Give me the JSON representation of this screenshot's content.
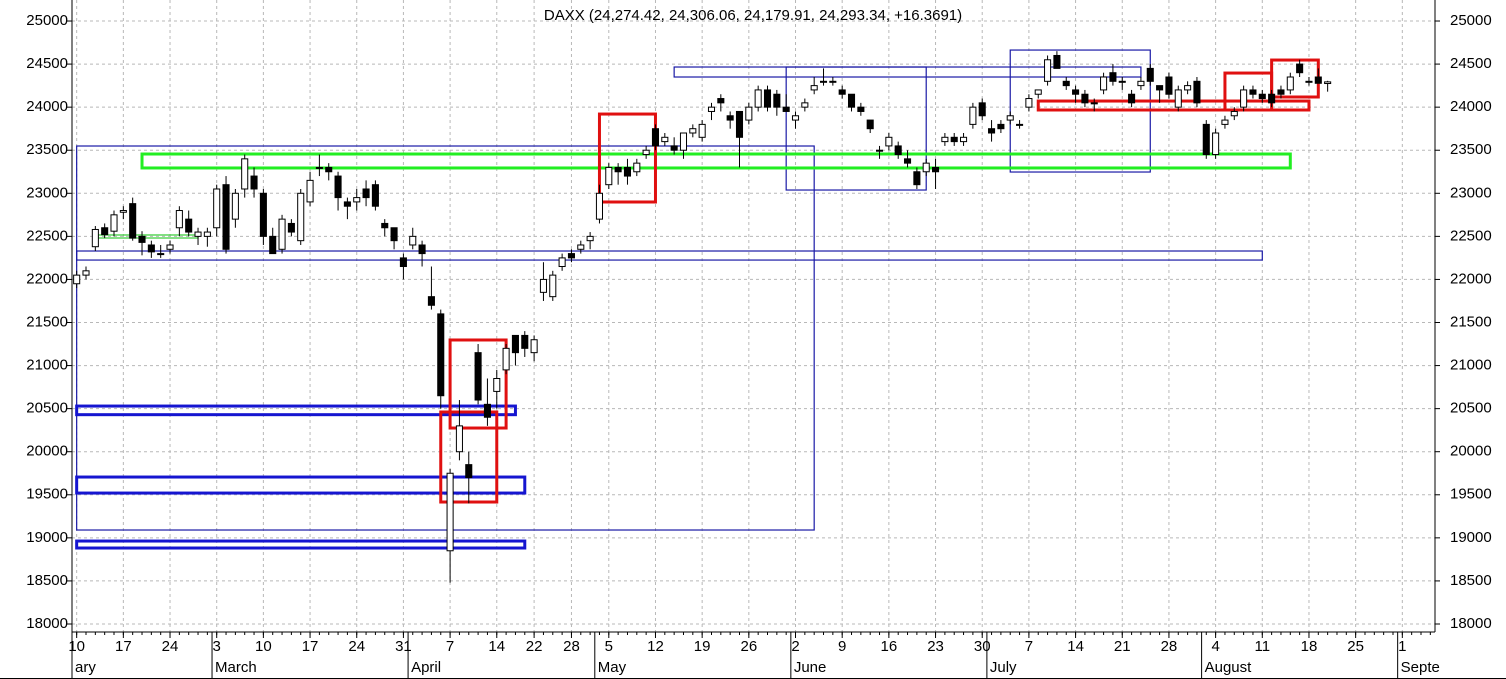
{
  "chart_data": {
    "type": "candlestick",
    "title": "DAXX (24,274.42, 24,306.06, 24,179.91, 24,293.34, +16.3691)",
    "categories": [
      "02-10",
      "02-11",
      "02-12",
      "02-13",
      "02-14",
      "02-17",
      "02-18",
      "02-19",
      "02-20",
      "02-21",
      "02-24",
      "02-25",
      "02-26",
      "02-27",
      "02-28",
      "03-03",
      "03-04",
      "03-05",
      "03-06",
      "03-07",
      "03-10",
      "03-11",
      "03-12",
      "03-13",
      "03-14",
      "03-17",
      "03-18",
      "03-19",
      "03-20",
      "03-21",
      "03-24",
      "03-25",
      "03-26",
      "03-27",
      "03-28",
      "03-31",
      "04-01",
      "04-02",
      "04-03",
      "04-04",
      "04-07",
      "04-08",
      "04-09",
      "04-10",
      "04-11",
      "04-14",
      "04-15",
      "04-16",
      "04-17",
      "04-22",
      "04-23",
      "04-24",
      "04-25",
      "04-28",
      "04-29",
      "04-30",
      "05-02",
      "05-05",
      "05-06",
      "05-07",
      "05-08",
      "05-09",
      "05-12",
      "05-13",
      "05-14",
      "05-15",
      "05-16",
      "05-19",
      "05-20",
      "05-21",
      "05-22",
      "05-23",
      "05-26",
      "05-27",
      "05-28",
      "05-29",
      "05-30",
      "06-02",
      "06-03",
      "06-04",
      "06-05",
      "06-06",
      "06-09",
      "06-10",
      "06-11",
      "06-12",
      "06-13",
      "06-16",
      "06-17",
      "06-18",
      "06-19",
      "06-20",
      "06-23",
      "06-24",
      "06-25",
      "06-26",
      "06-27",
      "06-30",
      "07-01",
      "07-02",
      "07-03",
      "07-04",
      "07-07",
      "07-08",
      "07-09",
      "07-10",
      "07-11",
      "07-14",
      "07-15",
      "07-16",
      "07-17",
      "07-18",
      "07-21",
      "07-22",
      "07-23",
      "07-24",
      "07-25",
      "07-28",
      "07-29",
      "07-30",
      "07-31",
      "08-01",
      "08-04",
      "08-05",
      "08-06",
      "08-07",
      "08-08",
      "08-11",
      "08-12",
      "08-13",
      "08-14",
      "08-15",
      "08-18",
      "08-19",
      "08-20",
      "08-21",
      "08-22",
      "08-25",
      "08-26",
      "08-27",
      "08-28",
      "08-29",
      "09-01",
      "09-02",
      "09-03",
      "09-04"
    ],
    "open": [
      21950,
      22050,
      22380,
      22600,
      22560,
      22780,
      22880,
      22500,
      22400,
      22300,
      22350,
      22600,
      22700,
      22500,
      22500,
      22600,
      23100,
      22700,
      23050,
      23200,
      23000,
      22500,
      22350,
      22650,
      22450,
      22900,
      23300,
      23300,
      23200,
      22900,
      22900,
      23050,
      23100,
      22650,
      22600,
      22250,
      22400,
      22400,
      21800,
      21600,
      18850,
      20000,
      19850,
      21150,
      20550,
      20700,
      20950,
      21350,
      21350,
      21150,
      21850,
      21800,
      22150,
      22300,
      22350,
      22450,
      22700,
      23100,
      23300,
      23300,
      23250,
      23450,
      23750,
      23600,
      23550,
      23500,
      23700,
      23650,
      23950,
      24100,
      23900,
      23950,
      23850,
      24000,
      24200,
      24150,
      24000,
      23850,
      24000,
      24200,
      24300,
      24300,
      24200,
      24150,
      24000,
      23850,
      23500,
      23550,
      23550,
      23400,
      23250,
      23250,
      23300,
      23600,
      23650,
      23600,
      23800,
      24050,
      23750,
      23800,
      23850,
      23800,
      24000,
      24150,
      24300,
      24600,
      24300,
      24200,
      24150,
      24050,
      24200,
      24400,
      24300,
      24150,
      24250,
      24450,
      24250,
      24350,
      24000,
      24200,
      24300,
      23800,
      23450,
      23800,
      23900,
      24000,
      24200,
      24150,
      24150,
      24200,
      24200,
      24500,
      24300,
      24350,
      24274.42,
      null,
      null,
      null,
      null,
      null,
      null,
      null,
      null,
      null,
      null,
      null
    ],
    "high": [
      22100,
      22150,
      22620,
      22650,
      22800,
      22850,
      22950,
      22560,
      22450,
      22400,
      22450,
      22850,
      22800,
      22600,
      22600,
      23100,
      23200,
      23050,
      23450,
      23300,
      23050,
      22600,
      22750,
      22700,
      23050,
      23250,
      23450,
      23350,
      23250,
      22950,
      23050,
      23150,
      23150,
      22700,
      22600,
      22300,
      22600,
      22450,
      22150,
      21650,
      19800,
      20600,
      20000,
      21250,
      20850,
      20950,
      21250,
      21350,
      21400,
      21350,
      22200,
      22100,
      22300,
      22350,
      22450,
      22550,
      23100,
      23350,
      23350,
      23400,
      23400,
      23550,
      23800,
      23700,
      23650,
      23700,
      23800,
      23850,
      24050,
      24150,
      23950,
      23950,
      24050,
      24250,
      24250,
      24200,
      24150,
      23950,
      24100,
      24350,
      24450,
      24350,
      24250,
      24150,
      24050,
      23850,
      23550,
      23700,
      23600,
      23500,
      23300,
      23400,
      23400,
      23700,
      23700,
      23700,
      24050,
      24100,
      23850,
      23850,
      23950,
      23850,
      24150,
      24200,
      24600,
      24650,
      24350,
      24250,
      24200,
      24100,
      24400,
      24500,
      24350,
      24200,
      24350,
      24500,
      24250,
      24400,
      24250,
      24300,
      24350,
      23850,
      23750,
      23900,
      24000,
      24250,
      24250,
      24200,
      24200,
      24250,
      24400,
      24550,
      24350,
      24450,
      24306.06,
      null,
      null,
      null,
      null,
      null,
      null,
      null,
      null,
      null,
      null,
      null
    ],
    "low": [
      21900,
      22000,
      22330,
      22480,
      22500,
      22700,
      22450,
      22280,
      22250,
      22250,
      22300,
      22500,
      22500,
      22400,
      22380,
      22500,
      22300,
      22600,
      22950,
      22950,
      22400,
      22300,
      22300,
      22500,
      22400,
      22850,
      23200,
      23150,
      22800,
      22700,
      22800,
      22850,
      22800,
      22500,
      22350,
      22000,
      22350,
      22150,
      21650,
      20500,
      18480,
      19900,
      19400,
      20550,
      20300,
      20500,
      20900,
      21000,
      21100,
      21050,
      21750,
      21750,
      22100,
      22200,
      22300,
      22350,
      22650,
      23050,
      23100,
      23100,
      23200,
      23400,
      23500,
      23550,
      23450,
      23400,
      23650,
      23600,
      23850,
      23950,
      23750,
      23300,
      23800,
      23950,
      23950,
      23900,
      23950,
      23750,
      23950,
      24150,
      24250,
      24250,
      24100,
      23950,
      23900,
      23700,
      23400,
      23500,
      23400,
      23300,
      23050,
      23200,
      23050,
      23550,
      23550,
      23550,
      23750,
      23850,
      23600,
      23700,
      23800,
      23750,
      23950,
      24100,
      24250,
      24450,
      24200,
      24050,
      24000,
      23950,
      24150,
      24250,
      24200,
      24000,
      24200,
      24250,
      24050,
      24100,
      23950,
      24150,
      24000,
      23400,
      23400,
      23750,
      23850,
      23950,
      24100,
      24050,
      24000,
      24100,
      24150,
      24350,
      24250,
      24300,
      24179.91,
      null,
      null,
      null,
      null,
      null,
      null,
      null,
      null,
      null,
      null,
      null
    ],
    "close": [
      22050,
      22100,
      22580,
      22520,
      22750,
      22800,
      22480,
      22430,
      22320,
      22300,
      22400,
      22800,
      22550,
      22550,
      22550,
      23050,
      22350,
      23000,
      23400,
      23050,
      22500,
      22300,
      22700,
      22550,
      23000,
      23150,
      23300,
      23250,
      22950,
      22850,
      22950,
      22950,
      22850,
      22600,
      22450,
      22150,
      22500,
      22300,
      21700,
      20650,
      19750,
      20300,
      19700,
      20600,
      20400,
      20850,
      21200,
      21150,
      21200,
      21300,
      22000,
      22050,
      22250,
      22250,
      22400,
      22500,
      23000,
      23300,
      23250,
      23200,
      23350,
      23500,
      23550,
      23650,
      23500,
      23700,
      23750,
      23800,
      24000,
      24050,
      23850,
      23650,
      24000,
      24200,
      24000,
      24000,
      23950,
      23900,
      24050,
      24250,
      24300,
      24300,
      24150,
      24000,
      23950,
      23750,
      23500,
      23650,
      23450,
      23350,
      23100,
      23350,
      23250,
      23650,
      23600,
      23650,
      24000,
      23900,
      23700,
      23750,
      23900,
      23800,
      24100,
      24200,
      24550,
      24450,
      24250,
      24150,
      24050,
      24050,
      24350,
      24300,
      24300,
      24050,
      24300,
      24300,
      24200,
      24150,
      24200,
      24250,
      24050,
      23450,
      23700,
      23850,
      23950,
      24200,
      24150,
      24100,
      24050,
      24150,
      24350,
      24400,
      24300,
      24277,
      24293.34,
      null,
      null,
      null,
      null,
      null,
      null,
      null,
      null,
      null,
      null,
      null
    ],
    "up_color": "#ffffff",
    "down_color": "#000000",
    "ylim": [
      17907,
      25244
    ],
    "yticks": [
      18000,
      18500,
      19000,
      19500,
      20000,
      20500,
      21000,
      21500,
      22000,
      22500,
      23000,
      23500,
      24000,
      24500,
      25000
    ],
    "xticks": [
      {
        "value": "02-10",
        "label": "10"
      },
      {
        "value": "02-17",
        "label": "17"
      },
      {
        "value": "02-24",
        "label": "24"
      },
      {
        "value": "03-03",
        "label": "3"
      },
      {
        "value": "03-10",
        "label": "10"
      },
      {
        "value": "03-17",
        "label": "17"
      },
      {
        "value": "03-24",
        "label": "24"
      },
      {
        "value": "03-31",
        "label": "31"
      },
      {
        "value": "04-07",
        "label": "7"
      },
      {
        "value": "04-14",
        "label": "14"
      },
      {
        "value": "04-22",
        "label": "22"
      },
      {
        "value": "04-28",
        "label": "28"
      },
      {
        "value": "05-05",
        "label": "5"
      },
      {
        "value": "05-12",
        "label": "12"
      },
      {
        "value": "05-19",
        "label": "19"
      },
      {
        "value": "05-26",
        "label": "26"
      },
      {
        "value": "06-02",
        "label": "2"
      },
      {
        "value": "06-09",
        "label": "9"
      },
      {
        "value": "06-16",
        "label": "16"
      },
      {
        "value": "06-23",
        "label": "23"
      },
      {
        "value": "06-30",
        "label": "30"
      },
      {
        "value": "07-07",
        "label": "7"
      },
      {
        "value": "07-14",
        "label": "14"
      },
      {
        "value": "07-21",
        "label": "21"
      },
      {
        "value": "07-28",
        "label": "28"
      },
      {
        "value": "08-04",
        "label": "4"
      },
      {
        "value": "08-11",
        "label": "11"
      },
      {
        "value": "08-18",
        "label": "18"
      },
      {
        "value": "08-25",
        "label": "25"
      },
      {
        "value": "09-01",
        "label": "1"
      }
    ],
    "month_ticks": [
      {
        "value": "02-10",
        "label": "ary"
      },
      {
        "value": "03-03",
        "label": "March"
      },
      {
        "value": "04-01",
        "label": "April"
      },
      {
        "value": "05-02",
        "label": "May"
      },
      {
        "value": "06-02",
        "label": "June"
      },
      {
        "value": "07-01",
        "label": "July"
      },
      {
        "value": "08-01",
        "label": "August"
      },
      {
        "value": "09-01",
        "label": "Septe"
      }
    ],
    "grid": true,
    "shapes": [
      {
        "color": "#1a1aa6",
        "weight": "thin",
        "x": [
          "02-10",
          "06-04"
        ],
        "y": [
          19091,
          23549
        ]
      },
      {
        "color": "#1a1aa6",
        "weight": "thin",
        "x": [
          "02-10",
          "08-11"
        ],
        "y": [
          22225,
          22330
        ]
      },
      {
        "color": "#1a1aa6",
        "weight": "thin",
        "x": [
          "05-14",
          "07-23"
        ],
        "y": [
          24350,
          24466
        ]
      },
      {
        "color": "#1a1aa6",
        "weight": "thin",
        "x": [
          "05-30",
          "06-20"
        ],
        "y": [
          23038,
          24466
        ]
      },
      {
        "color": "#1a1aa6",
        "weight": "thin",
        "x": [
          "07-03",
          "07-24"
        ],
        "y": [
          23247,
          24663
        ]
      },
      {
        "color": "#1515d0",
        "weight": "bold",
        "x": [
          "02-10",
          "04-16"
        ],
        "y": [
          20430,
          20530
        ]
      },
      {
        "color": "#1515d0",
        "weight": "bold",
        "x": [
          "02-10",
          "04-17"
        ],
        "y": [
          19520,
          19706
        ]
      },
      {
        "color": "#1515d0",
        "weight": "bold",
        "x": [
          "02-10",
          "04-17"
        ],
        "y": [
          18882,
          18963
        ]
      },
      {
        "color": "#33cc33",
        "weight": "thin",
        "x": [
          "02-12",
          "02-27"
        ],
        "y": [
          22481,
          22516
        ]
      },
      {
        "color": "#22ee22",
        "weight": "bold",
        "x": [
          "02-19",
          "08-14"
        ],
        "y": [
          23294,
          23456
        ]
      },
      {
        "color": "#e01010",
        "weight": "bold",
        "x": [
          "05-02",
          "05-12"
        ],
        "y": [
          22899,
          23920
        ]
      },
      {
        "color": "#e01010",
        "weight": "bold",
        "x": [
          "04-07",
          "04-15"
        ],
        "y": [
          20275,
          21297
        ]
      },
      {
        "color": "#e01010",
        "weight": "bold",
        "x": [
          "04-04",
          "04-14"
        ],
        "y": [
          19416,
          20461
        ]
      },
      {
        "color": "#e01010",
        "weight": "bold",
        "x": [
          "07-08",
          "08-18"
        ],
        "y": [
          23967,
          24071
        ]
      },
      {
        "color": "#e01010",
        "weight": "bold",
        "x": [
          "08-05",
          "08-12"
        ],
        "y": [
          23967,
          24396
        ]
      },
      {
        "color": "#e01010",
        "weight": "bold",
        "x": [
          "08-12",
          "08-19"
        ],
        "y": [
          24118,
          24547
        ]
      }
    ]
  }
}
